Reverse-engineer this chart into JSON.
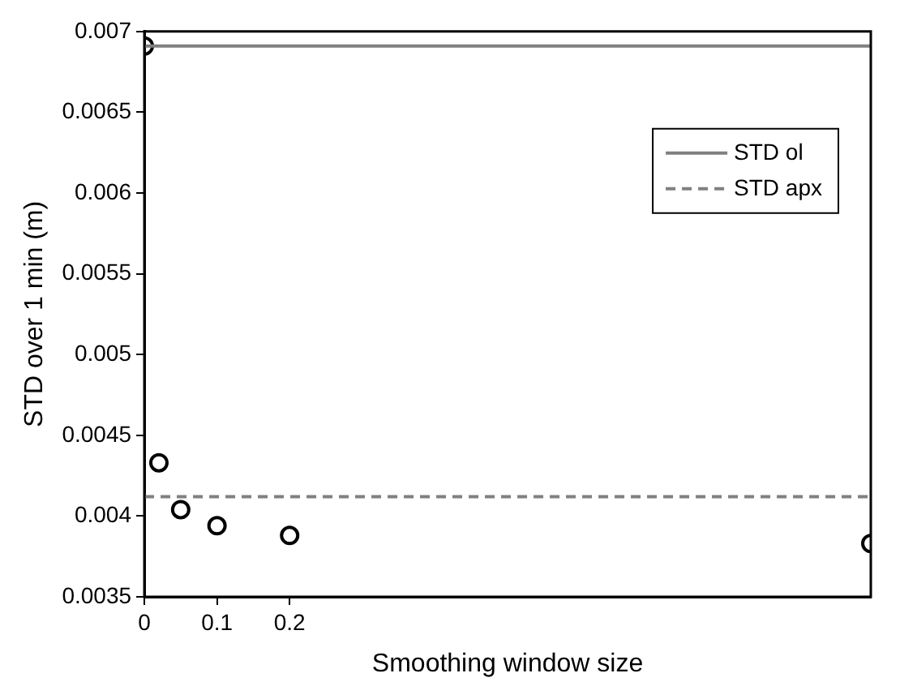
{
  "chart_data": {
    "type": "scatter",
    "xlabel": "Smoothing window size",
    "ylabel": "STD over 1 min (m)",
    "x": [
      0,
      0.02,
      0.05,
      0.1,
      0.2,
      1
    ],
    "series": [
      {
        "color": "#000000",
        "values": [
          0.00691,
          0.00433,
          0.00404,
          0.00394,
          0.00388,
          0.00383
        ]
      }
    ],
    "marker": "circle",
    "xlim": [
      0,
      1
    ],
    "xticks": [
      0,
      0.1,
      0.2
    ],
    "ylim": [
      0.0035,
      0.007
    ],
    "yticks": [
      0.0035,
      0.004,
      0.0045,
      0.005,
      0.0055,
      0.006,
      0.0065,
      0.007
    ],
    "ref_lines": [
      {
        "axis": "y",
        "value": 0.00412,
        "label": "STD apx",
        "color": "#808080",
        "line_style": "dashed"
      },
      {
        "axis": "y",
        "value": 0.00691,
        "label": "STD ol",
        "color": "#808080",
        "line_style": "solid"
      }
    ],
    "grid": false,
    "legend": "top right"
  }
}
